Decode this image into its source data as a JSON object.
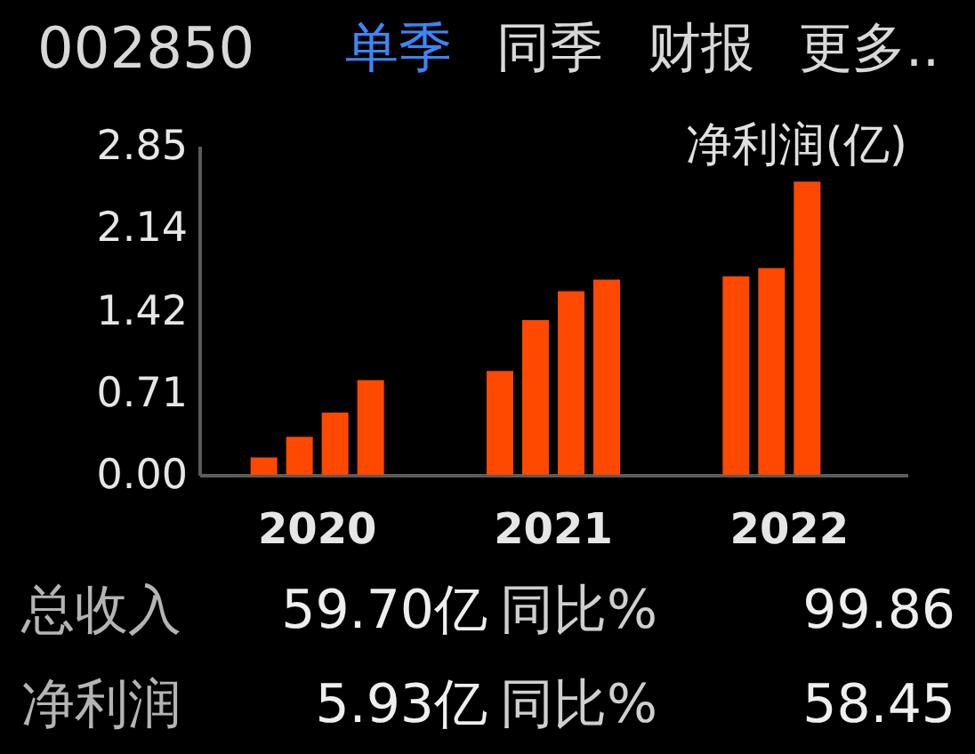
{
  "chart_data": {
    "type": "bar",
    "title": "002850",
    "ylabel": "净利润(亿)",
    "categories": [
      "2020",
      "2021",
      "2022"
    ],
    "series": [
      {
        "color": "#ff4800",
        "values": [
          0.15,
          0.9,
          1.72
        ]
      },
      {
        "color": "#ff4800",
        "values": [
          0.33,
          1.34,
          1.79
        ]
      },
      {
        "color": "#ff4800",
        "values": [
          0.54,
          1.59,
          2.54
        ]
      },
      {
        "color": "#ff4800",
        "values": [
          0.82,
          1.69,
          null
        ]
      }
    ],
    "ylim": [
      0,
      2.85
    ],
    "yticks": [
      {
        "value": 0,
        "label": "0.00"
      },
      0.71,
      1.42,
      2.14,
      2.85
    ],
    "grid": false,
    "annotations": [
      "单季",
      "同季",
      "财报",
      "更多..",
      "总收入",
      "59.70亿",
      "同比%",
      "99.86",
      "净利润",
      "5.93亿",
      "同比%",
      "58.45"
    ]
  }
}
